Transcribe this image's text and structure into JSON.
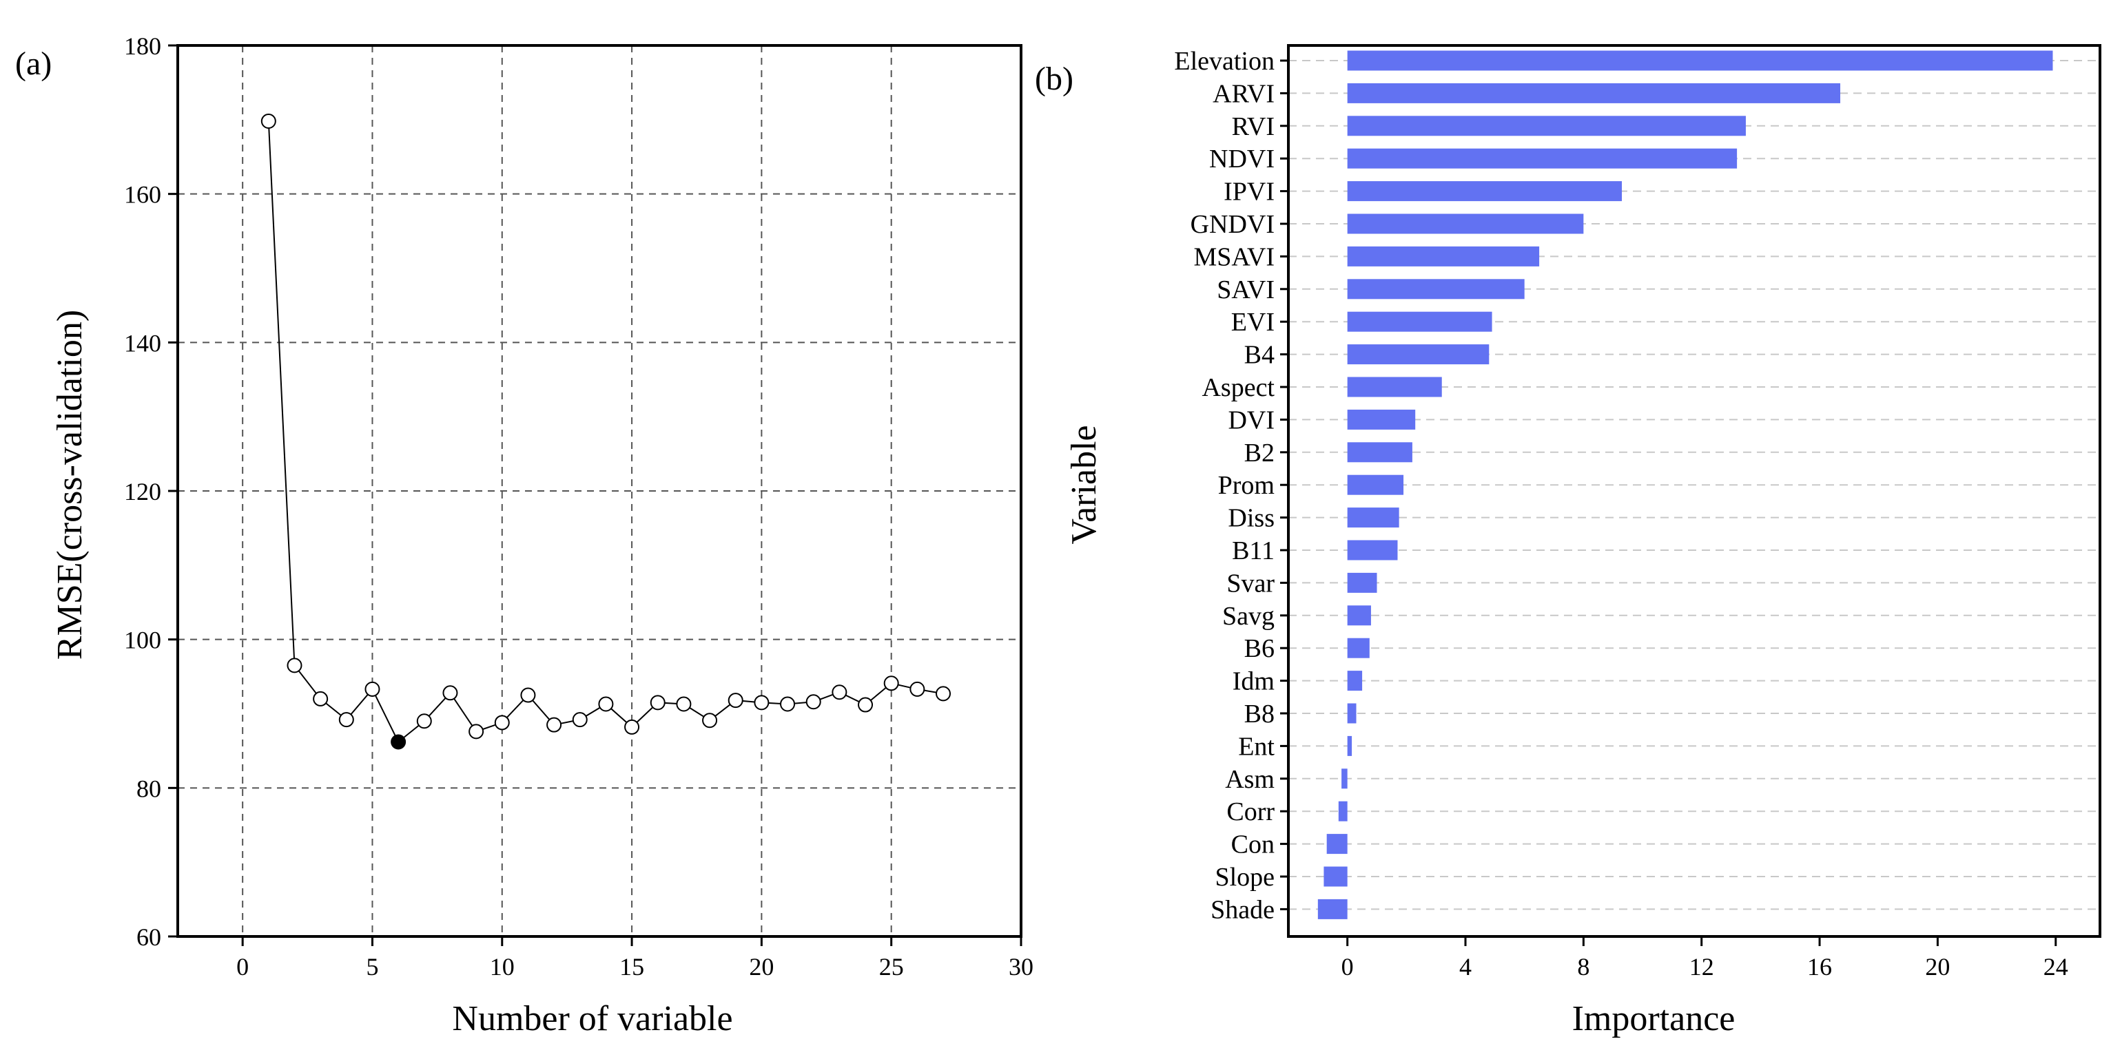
{
  "chart_data": [
    {
      "panel": "(a)",
      "type": "line",
      "xlabel": "Number of variable",
      "ylabel": "RMSE(cross-validation)",
      "xlim": [
        -2.5,
        30
      ],
      "ylim": [
        60,
        180
      ],
      "xticks": [
        0,
        5,
        10,
        15,
        20,
        25,
        30
      ],
      "yticks": [
        60,
        80,
        100,
        120,
        140,
        160,
        180
      ],
      "grid": true,
      "x": [
        1,
        2,
        3,
        4,
        5,
        6,
        7,
        8,
        9,
        10,
        11,
        12,
        13,
        14,
        15,
        16,
        17,
        18,
        19,
        20,
        21,
        22,
        23,
        24,
        25,
        26,
        27
      ],
      "y": [
        169.8,
        96.5,
        92,
        89.2,
        93.3,
        86.2,
        89,
        92.8,
        87.6,
        88.8,
        92.5,
        88.5,
        89.2,
        91.3,
        88.2,
        91.5,
        91.3,
        89.1,
        91.8,
        91.5,
        91.3,
        91.6,
        92.9,
        91.2,
        94.1,
        93.3,
        92.7
      ],
      "highlight_x": 6
    },
    {
      "panel": "(b)",
      "type": "bar",
      "orientation": "horizontal",
      "xlabel": "Importance",
      "ylabel": "Variable",
      "xlim": [
        -2,
        25.5
      ],
      "xticks": [
        0,
        4,
        8,
        12,
        16,
        20,
        24
      ],
      "grid": true,
      "color": "#6272f2",
      "categories": [
        "Elevation",
        "ARVI",
        "RVI",
        "NDVI",
        "IPVI",
        "GNDVI",
        "MSAVI",
        "SAVI",
        "EVI",
        "B4",
        "Aspect",
        "DVI",
        "B2",
        "Prom",
        "Diss",
        "B11",
        "Svar",
        "Savg",
        "B6",
        "Idm",
        "B8",
        "Ent",
        "Asm",
        "Corr",
        "Con",
        "Slope",
        "Shade"
      ],
      "values": [
        23.9,
        16.7,
        13.5,
        13.2,
        9.3,
        8.0,
        6.5,
        6.0,
        4.9,
        4.8,
        3.2,
        2.3,
        2.2,
        1.9,
        1.75,
        1.7,
        1.0,
        0.8,
        0.75,
        0.5,
        0.3,
        0.15,
        -0.2,
        -0.3,
        -0.7,
        -0.8,
        -1.0
      ]
    }
  ]
}
